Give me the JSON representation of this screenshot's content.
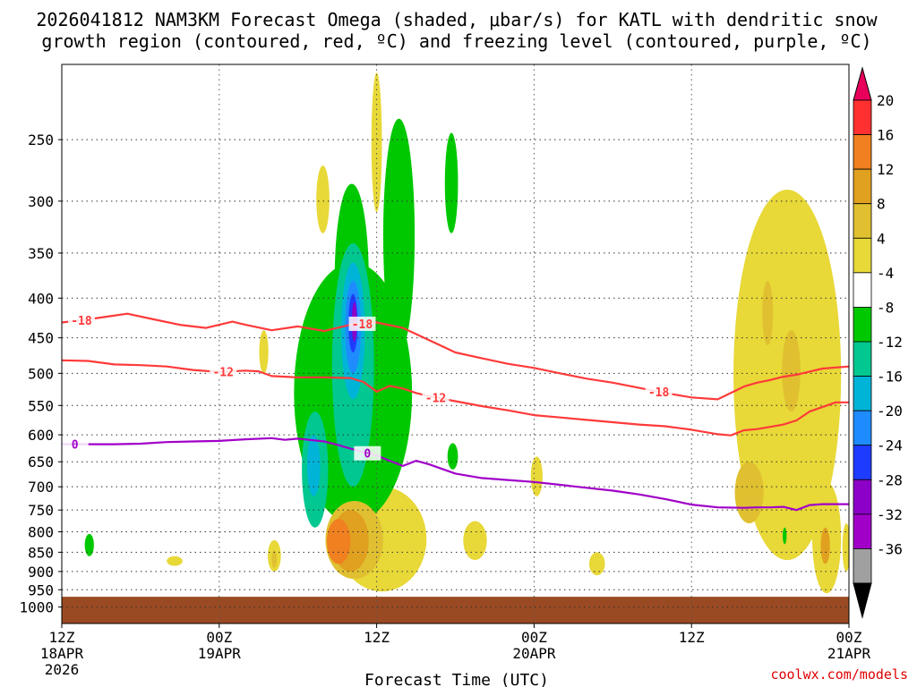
{
  "chart_data": {
    "type": "heatmap",
    "title_line1": "2026041812 NAM3KM Forecast Omega (shaded, μbar/s) for KATL with dendritic snow",
    "title_line2": "growth region (contoured, red, ºC) and freezing level (contoured, purple, ºC)",
    "xlabel": "Forecast Time (UTC)",
    "ylabel": "",
    "credit": "coolwx.com/models",
    "y_axis": {
      "unit": "hPa",
      "scale": "log-pressure",
      "range": [
        200,
        1050
      ],
      "ticks": [
        250,
        300,
        350,
        400,
        450,
        500,
        550,
        600,
        650,
        700,
        750,
        800,
        850,
        900,
        950,
        1000
      ]
    },
    "x_axis": {
      "unit": "hours since 2026041812",
      "range": [
        0,
        60
      ],
      "ticks": [
        {
          "hour": 0,
          "line1": "12Z",
          "line2": "18APR",
          "line3": "2026"
        },
        {
          "hour": 12,
          "line1": "00Z",
          "line2": "19APR",
          "line3": ""
        },
        {
          "hour": 24,
          "line1": "12Z",
          "line2": "",
          "line3": ""
        },
        {
          "hour": 36,
          "line1": "00Z",
          "line2": "20APR",
          "line3": ""
        },
        {
          "hour": 48,
          "line1": "12Z",
          "line2": "",
          "line3": ""
        },
        {
          "hour": 60,
          "line1": "00Z",
          "line2": "21APR",
          "line3": ""
        }
      ]
    },
    "colorbar": {
      "unit": "μbar/s",
      "levels": [
        {
          "label": "20",
          "color": "#ff3030"
        },
        {
          "label": "16",
          "color": "#f08020"
        },
        {
          "label": "12",
          "color": "#e0a020"
        },
        {
          "label": "8",
          "color": "#e0c030"
        },
        {
          "label": "4",
          "color": "#e8d838"
        },
        {
          "label": "-4",
          "color": "#ffffff"
        },
        {
          "label": "-8",
          "color": "#00c800"
        },
        {
          "label": "-12",
          "color": "#00c890"
        },
        {
          "label": "-16",
          "color": "#00b4d8"
        },
        {
          "label": "-20",
          "color": "#1e8cff"
        },
        {
          "label": "-24",
          "color": "#1e3cff"
        },
        {
          "label": "-28",
          "color": "#8c00c8"
        },
        {
          "label": "-32",
          "color": "#a000c8"
        },
        {
          "label": "-36",
          "color": "#a0a0a0"
        }
      ],
      "over_color": "#e8005a",
      "under_color": "#000000"
    },
    "omega_areas": [
      {
        "name": "green-main-plume",
        "value": -8,
        "hour": 22.2,
        "hpa_top": 360,
        "hpa_bottom": 780,
        "half_width_hours": 4.5
      },
      {
        "name": "green-upper-west",
        "value": -8,
        "hour": 22.1,
        "hpa_top": 285,
        "hpa_bottom": 500,
        "half_width_hours": 1.3
      },
      {
        "name": "green-upper-east",
        "value": -8,
        "hour": 25.7,
        "hpa_top": 235,
        "hpa_bottom": 470,
        "half_width_hours": 1.2
      },
      {
        "name": "green-jet-streak",
        "value": -8,
        "hour": 29.7,
        "hpa_top": 245,
        "hpa_bottom": 330,
        "half_width_hours": 0.5
      },
      {
        "name": "green-spot-mid",
        "value": -8,
        "hour": 29.8,
        "hpa_top": 615,
        "hpa_bottom": 665,
        "half_width_hours": 0.4
      },
      {
        "name": "green-spot-left",
        "value": -8,
        "hour": 2.1,
        "hpa_top": 805,
        "hpa_bottom": 860,
        "half_width_hours": 0.35
      },
      {
        "name": "green-spot-right",
        "value": -8,
        "hour": 55.1,
        "hpa_top": 790,
        "hpa_bottom": 830,
        "half_width_hours": 0.15
      },
      {
        "name": "teal-core",
        "value": -12,
        "hour": 22.2,
        "hpa_top": 340,
        "hpa_bottom": 700,
        "half_width_hours": 1.6
      },
      {
        "name": "teal-lower",
        "value": -12,
        "hour": 19.3,
        "hpa_top": 560,
        "hpa_bottom": 790,
        "half_width_hours": 1.0
      },
      {
        "name": "cyan-core",
        "value": -16,
        "hour": 22.2,
        "hpa_top": 360,
        "hpa_bottom": 540,
        "half_width_hours": 0.9
      },
      {
        "name": "cyan-lower",
        "value": -16,
        "hour": 19.2,
        "hpa_top": 600,
        "hpa_bottom": 720,
        "half_width_hours": 0.5
      },
      {
        "name": "blue-core",
        "value": -20,
        "hour": 22.2,
        "hpa_top": 380,
        "hpa_bottom": 500,
        "half_width_hours": 0.6
      },
      {
        "name": "navy-core",
        "value": -24,
        "hour": 22.2,
        "hpa_top": 395,
        "hpa_bottom": 470,
        "half_width_hours": 0.35
      },
      {
        "name": "purple-core",
        "value": -28,
        "hour": 22.3,
        "hpa_top": 405,
        "hpa_bottom": 455,
        "half_width_hours": 0.2
      },
      {
        "name": "yellow-low-level",
        "value": 4,
        "hour": 24.4,
        "hpa_top": 700,
        "hpa_bottom": 955,
        "half_width_hours": 3.4
      },
      {
        "name": "gold-low-level",
        "value": 8,
        "hour": 22.3,
        "hpa_top": 730,
        "hpa_bottom": 920,
        "half_width_hours": 2.2
      },
      {
        "name": "orange-low-level",
        "value": 12,
        "hour": 22.0,
        "hpa_top": 750,
        "hpa_bottom": 900,
        "half_width_hours": 1.4
      },
      {
        "name": "red-low-level",
        "value": 16,
        "hour": 21.1,
        "hpa_top": 770,
        "hpa_bottom": 880,
        "half_width_hours": 0.9
      },
      {
        "name": "yellow-upper-a",
        "value": 4,
        "hour": 24.0,
        "hpa_top": 205,
        "hpa_bottom": 310,
        "half_width_hours": 0.4
      },
      {
        "name": "yellow-upper-b",
        "value": 4,
        "hour": 19.9,
        "hpa_top": 270,
        "hpa_bottom": 330,
        "half_width_hours": 0.5
      },
      {
        "name": "yellow-evening-1",
        "value": 4,
        "hour": 15.4,
        "hpa_top": 440,
        "hpa_bottom": 500,
        "half_width_hours": 0.35
      },
      {
        "name": "yellow-evening-2",
        "value": 4,
        "hour": 16.2,
        "hpa_top": 820,
        "hpa_bottom": 900,
        "half_width_hours": 0.5
      },
      {
        "name": "orange-evening-2",
        "value": 8,
        "hour": 16.2,
        "hpa_top": 845,
        "hpa_bottom": 890,
        "half_width_hours": 0.2
      },
      {
        "name": "yellow-day2-a",
        "value": 4,
        "hour": 31.5,
        "hpa_top": 775,
        "hpa_bottom": 870,
        "half_width_hours": 0.9
      },
      {
        "name": "yellow-day2-b",
        "value": 4,
        "hour": 36.2,
        "hpa_top": 640,
        "hpa_bottom": 720,
        "half_width_hours": 0.45
      },
      {
        "name": "yellow-day2-c",
        "value": 4,
        "hour": 40.8,
        "hpa_top": 850,
        "hpa_bottom": 910,
        "half_width_hours": 0.6
      },
      {
        "name": "yellow-small-left",
        "value": 4,
        "hour": 8.6,
        "hpa_top": 860,
        "hpa_bottom": 885,
        "half_width_hours": 0.6
      },
      {
        "name": "yellow-right-main",
        "value": 4,
        "hour": 55.3,
        "hpa_top": 290,
        "hpa_bottom": 870,
        "half_width_hours": 4.1
      },
      {
        "name": "gold-right-lower",
        "value": 8,
        "hour": 52.4,
        "hpa_top": 650,
        "hpa_bottom": 780,
        "half_width_hours": 1.1
      },
      {
        "name": "gold-right-mid",
        "value": 8,
        "hour": 55.6,
        "hpa_top": 440,
        "hpa_bottom": 560,
        "half_width_hours": 0.7
      },
      {
        "name": "gold-right-upper",
        "value": 8,
        "hour": 53.8,
        "hpa_top": 380,
        "hpa_bottom": 460,
        "half_width_hours": 0.4
      },
      {
        "name": "yellow-right-low",
        "value": 4,
        "hour": 58.3,
        "hpa_top": 690,
        "hpa_bottom": 960,
        "half_width_hours": 1.1
      },
      {
        "name": "orange-right-low",
        "value": 12,
        "hour": 58.2,
        "hpa_top": 790,
        "hpa_bottom": 880,
        "half_width_hours": 0.35
      },
      {
        "name": "yellow-right-edge",
        "value": 4,
        "hour": 59.8,
        "hpa_top": 780,
        "hpa_bottom": 900,
        "half_width_hours": 0.3
      }
    ],
    "contours": [
      {
        "name": "minus-18C",
        "label": "-18",
        "color": "#ff3a3a",
        "label_hours": [
          1.5,
          22.9,
          45.5
        ],
        "points": [
          [
            0,
            430
          ],
          [
            2,
            426
          ],
          [
            5,
            419
          ],
          [
            7,
            426
          ],
          [
            9,
            433
          ],
          [
            11,
            437
          ],
          [
            13,
            429
          ],
          [
            14,
            433
          ],
          [
            16,
            440
          ],
          [
            18,
            435
          ],
          [
            20,
            441
          ],
          [
            22,
            433
          ],
          [
            24,
            430
          ],
          [
            26,
            437
          ],
          [
            28,
            453
          ],
          [
            30,
            470
          ],
          [
            32,
            478
          ],
          [
            34,
            486
          ],
          [
            36,
            492
          ],
          [
            38,
            500
          ],
          [
            40,
            508
          ],
          [
            42,
            514
          ],
          [
            44,
            522
          ],
          [
            46,
            530
          ],
          [
            48,
            537
          ],
          [
            50,
            540
          ],
          [
            52,
            520
          ],
          [
            53,
            514
          ],
          [
            54,
            510
          ],
          [
            55,
            505
          ],
          [
            56,
            502
          ],
          [
            58,
            493
          ],
          [
            60,
            490
          ]
        ]
      },
      {
        "name": "minus-12C",
        "label": "-12",
        "color": "#ff3a3a",
        "label_hours": [
          12.3,
          28.5
        ],
        "points": [
          [
            0,
            481
          ],
          [
            2,
            482
          ],
          [
            4,
            487
          ],
          [
            6,
            488
          ],
          [
            8,
            490
          ],
          [
            10,
            495
          ],
          [
            12,
            498
          ],
          [
            14,
            496
          ],
          [
            15,
            497
          ],
          [
            16,
            504
          ],
          [
            18,
            506
          ],
          [
            20,
            506
          ],
          [
            22,
            507
          ],
          [
            23,
            513
          ],
          [
            24,
            528
          ],
          [
            25,
            519
          ],
          [
            26,
            523
          ],
          [
            27,
            530
          ],
          [
            28,
            535
          ],
          [
            30,
            543
          ],
          [
            32,
            551
          ],
          [
            34,
            558
          ],
          [
            36,
            566
          ],
          [
            38,
            570
          ],
          [
            40,
            574
          ],
          [
            42,
            578
          ],
          [
            44,
            582
          ],
          [
            46,
            585
          ],
          [
            48,
            591
          ],
          [
            50,
            599
          ],
          [
            51,
            601
          ],
          [
            52,
            592
          ],
          [
            53,
            590
          ],
          [
            54,
            586
          ],
          [
            55,
            582
          ],
          [
            56,
            575
          ],
          [
            57,
            560
          ],
          [
            59,
            545
          ],
          [
            60,
            545
          ]
        ]
      },
      {
        "name": "freezing-level-0C",
        "label": "0",
        "color": "#a000c8",
        "label_hours": [
          1.0,
          23.3
        ],
        "points": [
          [
            0,
            617
          ],
          [
            2,
            617
          ],
          [
            4,
            617
          ],
          [
            6,
            616
          ],
          [
            8,
            613
          ],
          [
            10,
            612
          ],
          [
            12,
            611
          ],
          [
            14,
            608
          ],
          [
            16,
            606
          ],
          [
            17,
            609
          ],
          [
            18,
            607
          ],
          [
            20,
            612
          ],
          [
            21,
            618
          ],
          [
            22,
            625
          ],
          [
            23,
            632
          ],
          [
            24,
            638
          ],
          [
            25,
            648
          ],
          [
            26,
            658
          ],
          [
            27,
            648
          ],
          [
            28,
            655
          ],
          [
            30,
            673
          ],
          [
            32,
            682
          ],
          [
            34,
            686
          ],
          [
            36,
            690
          ],
          [
            38,
            696
          ],
          [
            40,
            702
          ],
          [
            42,
            708
          ],
          [
            44,
            716
          ],
          [
            46,
            726
          ],
          [
            48,
            738
          ],
          [
            50,
            744
          ],
          [
            52,
            745
          ],
          [
            53,
            744
          ],
          [
            54,
            744
          ],
          [
            55,
            743
          ],
          [
            56,
            750
          ],
          [
            57,
            739
          ],
          [
            58,
            737
          ],
          [
            60,
            737
          ]
        ]
      }
    ],
    "surface": {
      "color": "#9a4a22",
      "hpa_top": 970,
      "hpa_bottom": 1050
    }
  }
}
